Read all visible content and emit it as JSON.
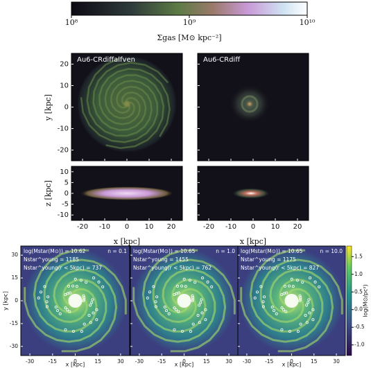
{
  "top_colorbar": {
    "label": "Σgas [M⊙ kpc⁻²]",
    "lim": [
      100000000,
      10000000000
    ],
    "log": true,
    "ticks": [
      {
        "value": 100000000,
        "label": "10⁸"
      },
      {
        "value": 1000000000,
        "label": "10⁹"
      },
      {
        "value": 10000000000,
        "label": "10¹⁰"
      }
    ]
  },
  "top_panels": {
    "xlabel": "x [kpc]",
    "ylabel": "y [kpc]",
    "zlabel": "z [kpc]",
    "xlim": [
      -25,
      25
    ],
    "xticks": [
      -20,
      -10,
      0,
      10,
      20
    ],
    "ylim": [
      -25,
      25
    ],
    "yticks": [
      -20,
      -10,
      0,
      10,
      20
    ],
    "zlim": [
      -12.5,
      12.5
    ],
    "zticks": [
      -10,
      -5,
      0,
      5,
      10
    ],
    "names": [
      "Au6-CRdiffalfven",
      "Au6-CRdiff"
    ]
  },
  "bottom_panels": {
    "xlabel": "x [kpc]",
    "ylabel": "y [kpc]",
    "xlim": [
      -36,
      36
    ],
    "xticks": [
      -30,
      -15,
      0,
      15,
      30
    ],
    "ylim": [
      -36,
      36
    ],
    "yticks": [
      -30,
      -15,
      0,
      15,
      30
    ],
    "colorbar": {
      "label": "log(M⊙/pc²)",
      "lim": [
        -1.3,
        1.8
      ],
      "ticks": [
        {
          "value": -1,
          "label": "-1.0"
        },
        {
          "value": -0.5,
          "label": "-0.5"
        },
        {
          "value": 0,
          "label": "0.0"
        },
        {
          "value": 0.5,
          "label": "0.5"
        },
        {
          "value": 1,
          "label": "1.0"
        },
        {
          "value": 1.5,
          "label": "1.5"
        }
      ]
    },
    "panels": [
      {
        "mass": "log(Mstar(M⊙)) = 10.62",
        "n": "n = 0.1",
        "nyoung": "Nstar^young = 1185",
        "nyoung5": "Nstar^young(r < 5kpc) = 737"
      },
      {
        "mass": "log(Mstar(M⊙)) = 10.65",
        "n": "n = 1.0",
        "nyoung": "Nstar^young = 1455",
        "nyoung5": "Nstar^young(r < 5kpc) = 762"
      },
      {
        "mass": "log(Mstar(M⊙)) = 10.65",
        "n": "n = 10.0",
        "nyoung": "Nstar^young = 1175",
        "nyoung5": "Nstar^young(r < 5kpc) = 827"
      }
    ]
  }
}
